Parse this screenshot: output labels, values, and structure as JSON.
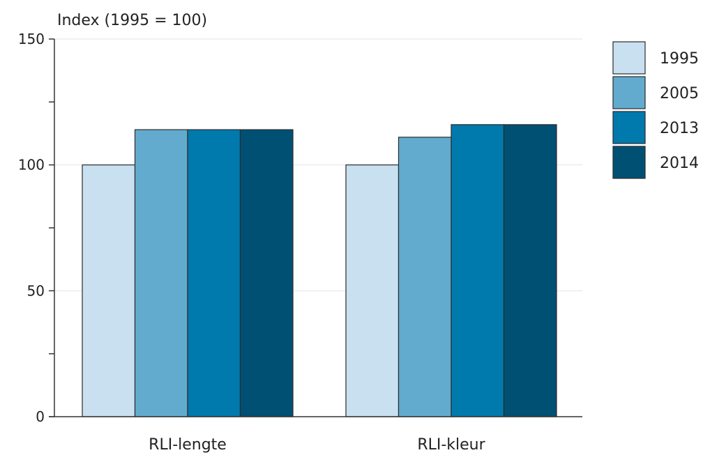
{
  "chart_data": {
    "type": "bar",
    "ylabel": "Index (1995 = 100)",
    "xlabel": "",
    "categories": [
      "RLI-lengte",
      "RLI-kleur"
    ],
    "series": [
      {
        "name": "1995",
        "values": [
          100,
          100
        ],
        "color": "#c9e0f0"
      },
      {
        "name": "2005",
        "values": [
          114,
          111
        ],
        "color": "#62abcf"
      },
      {
        "name": "2013",
        "values": [
          114,
          116
        ],
        "color": "#0079ad"
      },
      {
        "name": "2014",
        "values": [
          114,
          116
        ],
        "color": "#005074"
      }
    ],
    "ylim": [
      0,
      150
    ],
    "yticks": [
      "0",
      "50",
      "100",
      "150"
    ],
    "grid": true,
    "legend_position": "right"
  }
}
